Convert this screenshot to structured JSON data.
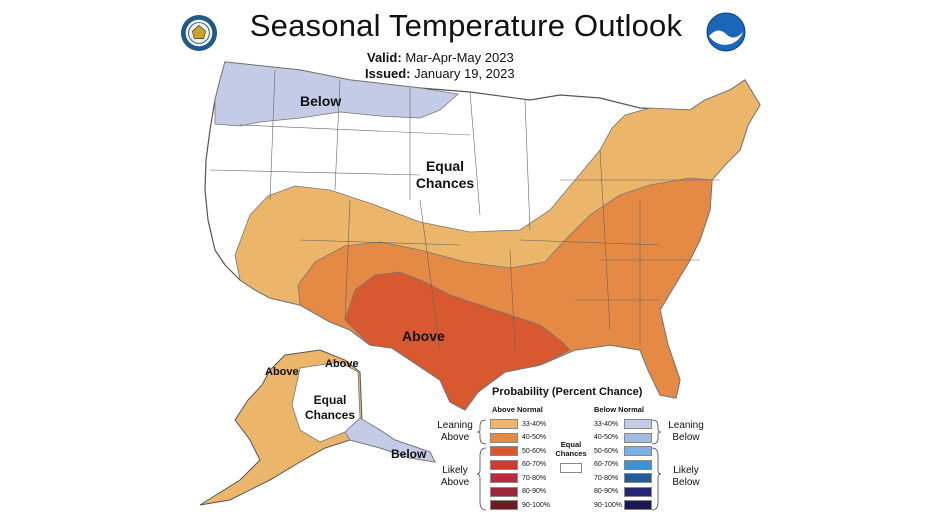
{
  "header": {
    "title": "Seasonal Temperature Outlook",
    "valid_label": "Valid:",
    "valid_value": "Mar-Apr-May 2023",
    "issued_label": "Issued:",
    "issued_value": "January 19, 2023"
  },
  "logos": {
    "left": "commerce-department-seal-icon",
    "right": "noaa-logo-icon"
  },
  "map": {
    "labels": {
      "below_north": "Below",
      "equal_chances_line1": "Equal",
      "equal_chances_line2": "Chances",
      "above_south": "Above",
      "alaska_above_west": "Above",
      "alaska_above_north": "Above",
      "alaska_equal_line1": "Equal",
      "alaska_equal_line2": "Chances",
      "alaska_below": "Below"
    }
  },
  "legend": {
    "title": "Probability (Percent Chance)",
    "above_header": "Above Normal",
    "below_header": "Below Normal",
    "equal_label_line1": "Equal",
    "equal_label_line2": "Chances",
    "leaning_above_1": "Leaning",
    "leaning_above_2": "Above",
    "likely_above_1": "Likely",
    "likely_above_2": "Above",
    "leaning_below_1": "Leaning",
    "leaning_below_2": "Below",
    "likely_below_1": "Likely",
    "likely_below_2": "Below",
    "above": [
      {
        "range": "33-40%",
        "color": "#EBB56A"
      },
      {
        "range": "40-50%",
        "color": "#E48A45"
      },
      {
        "range": "50-60%",
        "color": "#D8582F"
      },
      {
        "range": "60-70%",
        "color": "#D13A34"
      },
      {
        "range": "70-80%",
        "color": "#C2263F"
      },
      {
        "range": "80-90%",
        "color": "#9A2A39"
      },
      {
        "range": "90-100%",
        "color": "#6B1E1E"
      }
    ],
    "below": [
      {
        "range": "33-40%",
        "color": "#C3CBE6"
      },
      {
        "range": "40-50%",
        "color": "#A3BCE2"
      },
      {
        "range": "50-60%",
        "color": "#7DB1E3"
      },
      {
        "range": "60-70%",
        "color": "#3A92D4"
      },
      {
        "range": "70-80%",
        "color": "#1E5E9A"
      },
      {
        "range": "80-90%",
        "color": "#262773"
      },
      {
        "range": "90-100%",
        "color": "#1B1850"
      }
    ]
  }
}
